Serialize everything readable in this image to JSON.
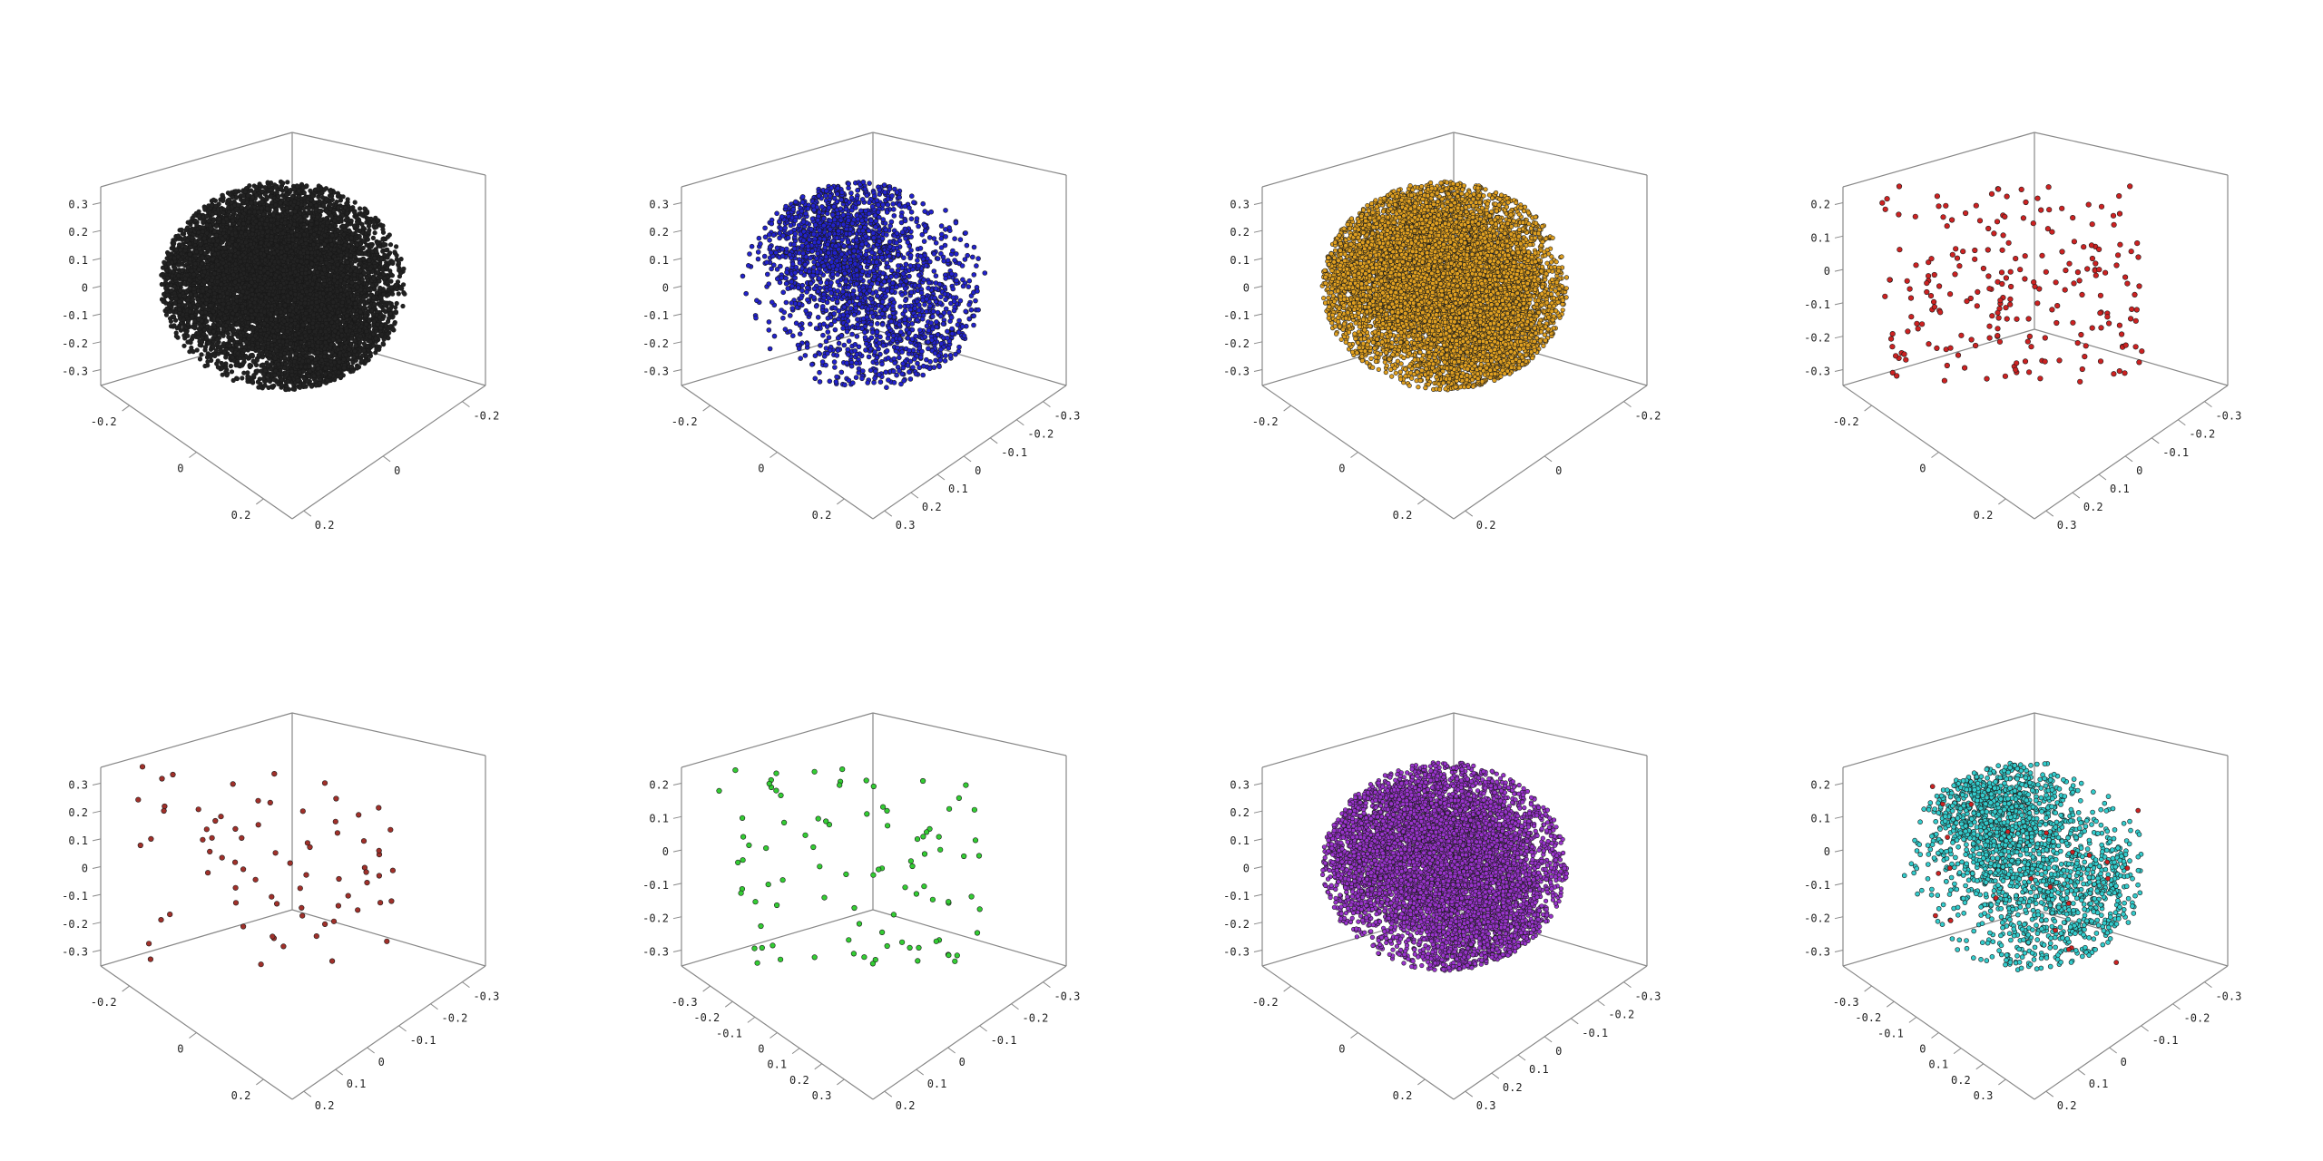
{
  "figure": {
    "background": "#ffffff",
    "box_line_color": "#888888",
    "point_stroke": "#1a1a1a"
  },
  "chart_data": [
    {
      "type": "scatter",
      "panel": 1,
      "color": "#222222",
      "n_points": 9000,
      "cluster": "two-lobe dense",
      "axes": {
        "z_ticks": [
          "0.3",
          "0.2",
          "0.1",
          "0",
          "-0.1",
          "-0.2",
          "-0.3"
        ],
        "left_ticks": [
          "-0.2",
          "0",
          "0.2"
        ],
        "right_ticks": [
          "-0.2",
          "0",
          "0.2"
        ]
      }
    },
    {
      "type": "scatter",
      "panel": 2,
      "color": "#2222cc",
      "n_points": 2200,
      "cluster": "two-lobe medium",
      "axes": {
        "z_ticks": [
          "0.3",
          "0.2",
          "0.1",
          "0",
          "-0.1",
          "-0.2",
          "-0.3"
        ],
        "left_ticks": [
          "-0.2",
          "0",
          "0.2"
        ],
        "right_ticks": [
          "-0.3",
          "-0.2",
          "-0.1",
          "0",
          "0.1",
          "0.2",
          "0.3"
        ]
      }
    },
    {
      "type": "scatter",
      "panel": 3,
      "color": "#e0a020",
      "n_points": 9000,
      "cluster": "two-lobe dense",
      "axes": {
        "z_ticks": [
          "0.3",
          "0.2",
          "0.1",
          "0",
          "-0.1",
          "-0.2",
          "-0.3"
        ],
        "left_ticks": [
          "-0.2",
          "0",
          "0.2"
        ],
        "right_ticks": [
          "-0.2",
          "0",
          "0.2"
        ]
      }
    },
    {
      "type": "scatter",
      "panel": 4,
      "color": "#cc2222",
      "n_points": 230,
      "cluster": "sparse",
      "axes": {
        "z_ticks": [
          "0.2",
          "0.1",
          "0",
          "-0.1",
          "-0.2",
          "-0.3"
        ],
        "left_ticks": [
          "-0.2",
          "0",
          "0.2"
        ],
        "right_ticks": [
          "-0.3",
          "-0.2",
          "-0.1",
          "0",
          "0.1",
          "0.2",
          "0.3"
        ]
      }
    },
    {
      "type": "scatter",
      "panel": 5,
      "color": "#a0302a",
      "n_points": 75,
      "cluster": "sparse",
      "axes": {
        "z_ticks": [
          "0.3",
          "0.2",
          "0.1",
          "0",
          "-0.1",
          "-0.2",
          "-0.3"
        ],
        "left_ticks": [
          "-0.2",
          "0",
          "0.2"
        ],
        "right_ticks": [
          "-0.3",
          "-0.2",
          "-0.1",
          "0",
          "0.1",
          "0.2"
        ]
      }
    },
    {
      "type": "scatter",
      "panel": 6,
      "color": "#33cc33",
      "n_points": 95,
      "cluster": "sparse",
      "axes": {
        "z_ticks": [
          "0.2",
          "0.1",
          "0",
          "-0.1",
          "-0.2",
          "-0.3"
        ],
        "left_ticks": [
          "-0.3",
          "-0.2",
          "-0.1",
          "0",
          "0.1",
          "0.2",
          "0.3"
        ],
        "right_ticks": [
          "-0.3",
          "-0.2",
          "-0.1",
          "0",
          "0.1",
          "0.2"
        ]
      }
    },
    {
      "type": "scatter",
      "panel": 7,
      "color": "#9933cc",
      "n_points": 7000,
      "cluster": "two-lobe dense",
      "axes": {
        "z_ticks": [
          "0.3",
          "0.2",
          "0.1",
          "0",
          "-0.1",
          "-0.2",
          "-0.3"
        ],
        "left_ticks": [
          "-0.2",
          "0",
          "0.2"
        ],
        "right_ticks": [
          "-0.3",
          "-0.2",
          "-0.1",
          "0",
          "0.1",
          "0.2",
          "0.3"
        ]
      }
    },
    {
      "type": "scatter",
      "panel": 8,
      "color": "#33cccc",
      "secondary_color": "#cc2222",
      "n_points": 1900,
      "cluster": "two-lobe medium",
      "axes": {
        "z_ticks": [
          "0.2",
          "0.1",
          "0",
          "-0.1",
          "-0.2",
          "-0.3"
        ],
        "left_ticks": [
          "-0.3",
          "-0.2",
          "-0.1",
          "0",
          "0.1",
          "0.2",
          "0.3"
        ],
        "right_ticks": [
          "-0.3",
          "-0.2",
          "-0.1",
          "0",
          "0.1",
          "0.2"
        ]
      }
    }
  ]
}
